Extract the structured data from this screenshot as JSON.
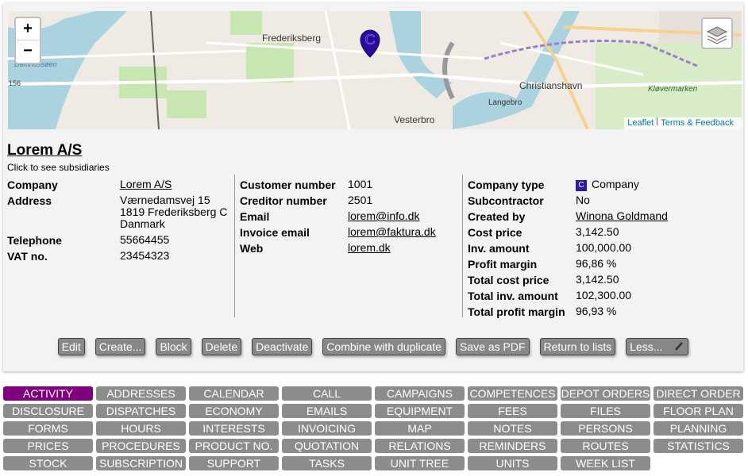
{
  "map": {
    "zoom_in": "+",
    "zoom_out": "−",
    "marker": "C",
    "labels": [
      "Frederiksberg",
      "Vesterbro",
      "Christianshavn",
      "Langebro",
      "Kløvermarken",
      "Damhussøen",
      "156"
    ],
    "attribution": [
      "Leaflet",
      "Terms & Feedback"
    ]
  },
  "company": {
    "title": "Lorem A/S",
    "subtitle": "Click to see subsidiaries",
    "columns": [
      [
        {
          "label": "Company",
          "value": [
            "Lorem A/S"
          ],
          "link": true
        },
        {
          "label": "Address",
          "value": [
            "Værnedamsvej 15",
            "1819 Frederiksberg C",
            "Danmark"
          ]
        },
        {
          "label": "Telephone",
          "value": [
            "55664455"
          ]
        },
        {
          "label": "VAT no.",
          "value": [
            "23454323"
          ]
        }
      ],
      [
        {
          "label": "Customer number",
          "value": [
            "1001"
          ]
        },
        {
          "label": "Creditor number",
          "value": [
            "2501"
          ]
        },
        {
          "label": "Email",
          "value": [
            "lorem@info.dk"
          ],
          "link": true
        },
        {
          "label": "Invoice email",
          "value": [
            "lorem@faktura.dk"
          ],
          "link": true
        },
        {
          "label": "Web",
          "value": [
            "lorem.dk"
          ],
          "link": true
        }
      ],
      [
        {
          "label": "Company type",
          "value": [
            "Company"
          ],
          "badge": "C"
        },
        {
          "label": "Subcontractor",
          "value": [
            "No"
          ]
        },
        {
          "label": "Created by",
          "value": [
            "Winona Goldmand"
          ],
          "link": true
        },
        {
          "label": "Cost price",
          "value": [
            "3,142.50"
          ]
        },
        {
          "label": "Inv. amount",
          "value": [
            "100,000.00"
          ]
        },
        {
          "label": "Profit margin",
          "value": [
            "96,86 %"
          ]
        },
        {
          "label": "Total cost price",
          "value": [
            "3,142.50"
          ]
        },
        {
          "label": "Total inv. amount",
          "value": [
            "102,300.00"
          ]
        },
        {
          "label": "Total profit margin",
          "value": [
            "96,93 %"
          ]
        }
      ]
    ]
  },
  "buttons": [
    "Edit",
    "Create...",
    "Block",
    "Delete",
    "Deactivate",
    "Combine with duplicate",
    "Save as PDF",
    "Return to lists",
    "Less..."
  ],
  "tabs": {
    "active_tab": "ACTIVITY",
    "items": [
      "ACTIVITY",
      "ADDRESSES",
      "CALENDAR",
      "CALL",
      "CAMPAIGNS",
      "COMPETENCES",
      "DEPOT ORDERS",
      "DIRECT ORDER",
      "DISCLOSURE",
      "DISPATCHES",
      "ECONOMY",
      "EMAILS",
      "EQUIPMENT",
      "FEES",
      "FILES",
      "FLOOR PLAN",
      "FORMS",
      "HOURS",
      "INTERESTS",
      "INVOICING",
      "MAP",
      "NOTES",
      "PERSONS",
      "PLANNING",
      "PRICES",
      "PROCEDURES",
      "PRODUCT NO.",
      "QUOTATION",
      "RELATIONS",
      "REMINDERS",
      "ROUTES",
      "STATISTICS",
      "STOCK",
      "SUBSCRIPTION",
      "SUPPORT",
      "TASKS",
      "UNIT TREE",
      "UNITS",
      "WEEK LIST"
    ]
  }
}
